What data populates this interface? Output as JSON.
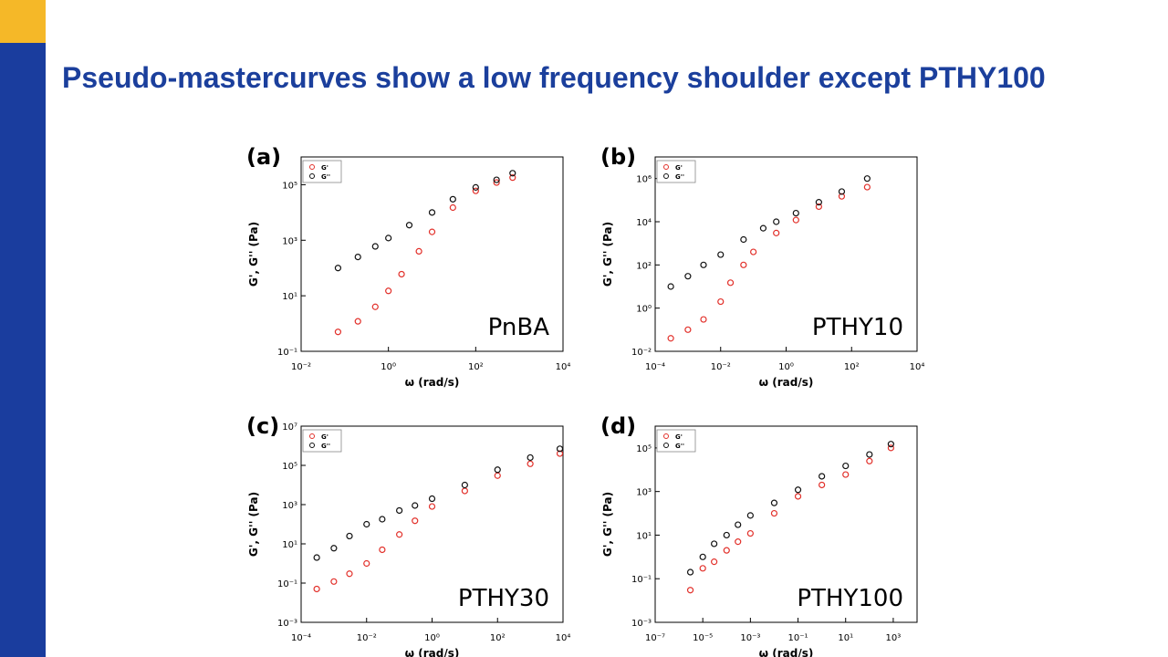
{
  "slide": {
    "title": "Pseudo-mastercurves show a low frequency shoulder except PTHY100"
  },
  "chart_data": [
    {
      "type": "scatter",
      "panel": "(a)",
      "annotation": "PnBA",
      "x_label": "ω (rad/s)",
      "y_label": "G', G'' (Pa)",
      "xscale": "log",
      "yscale": "log",
      "legend": "top-left",
      "xlim": [
        0.01,
        10000
      ],
      "ylim": [
        0.1,
        1000000
      ],
      "xticks": [
        {
          "value": 0.01,
          "label": "10⁻²"
        },
        {
          "value": 1,
          "label": "10⁰"
        },
        {
          "value": 100,
          "label": "10²"
        },
        {
          "value": 10000,
          "label": "10⁴"
        }
      ],
      "yticks": [
        {
          "value": 0.1,
          "label": "10⁻¹"
        },
        {
          "value": 10,
          "label": "10¹"
        },
        {
          "value": 1000,
          "label": "10³"
        },
        {
          "value": 100000,
          "label": "10⁵"
        }
      ],
      "series": [
        {
          "name": "G'",
          "color": "#e2302a",
          "x": [
            0.07,
            0.2,
            0.5,
            1,
            2,
            5,
            10,
            30,
            100,
            300,
            700
          ],
          "values": [
            0.5,
            1.2,
            4,
            15,
            60,
            400,
            2000,
            15000,
            60000,
            120000,
            180000
          ]
        },
        {
          "name": "G''",
          "color": "#111111",
          "x": [
            0.07,
            0.2,
            0.5,
            1,
            3,
            10,
            30,
            100,
            300,
            700
          ],
          "values": [
            100,
            250,
            600,
            1200,
            3500,
            10000,
            30000,
            80000,
            150000,
            260000
          ]
        }
      ]
    },
    {
      "type": "scatter",
      "panel": "(b)",
      "annotation": "PTHY10",
      "x_label": "ω (rad/s)",
      "y_label": "G', G'' (Pa)",
      "xscale": "log",
      "yscale": "log",
      "legend": "top-left",
      "xlim": [
        0.0001,
        10000
      ],
      "ylim": [
        0.01,
        10000000
      ],
      "xticks": [
        {
          "value": 0.0001,
          "label": "10⁻⁴"
        },
        {
          "value": 0.01,
          "label": "10⁻²"
        },
        {
          "value": 1,
          "label": "10⁰"
        },
        {
          "value": 100,
          "label": "10²"
        },
        {
          "value": 10000,
          "label": "10⁴"
        }
      ],
      "yticks": [
        {
          "value": 0.01,
          "label": "10⁻²"
        },
        {
          "value": 1,
          "label": "10⁰"
        },
        {
          "value": 100,
          "label": "10²"
        },
        {
          "value": 10000,
          "label": "10⁴"
        },
        {
          "value": 1000000,
          "label": "10⁶"
        }
      ],
      "series": [
        {
          "name": "G'",
          "color": "#e2302a",
          "x": [
            0.0003,
            0.001,
            0.003,
            0.01,
            0.02,
            0.05,
            0.1,
            0.5,
            2,
            10,
            50,
            300
          ],
          "values": [
            0.04,
            0.1,
            0.3,
            2,
            15,
            100,
            400,
            3000,
            12000,
            50000,
            150000,
            400000
          ]
        },
        {
          "name": "G''",
          "color": "#111111",
          "x": [
            0.0003,
            0.001,
            0.003,
            0.01,
            0.05,
            0.2,
            0.5,
            2,
            10,
            50,
            300
          ],
          "values": [
            10,
            30,
            100,
            300,
            1500,
            5000,
            10000,
            25000,
            80000,
            250000,
            1000000
          ]
        }
      ]
    },
    {
      "type": "scatter",
      "panel": "(c)",
      "annotation": "PTHY30",
      "x_label": "ω (rad/s)",
      "y_label": "G', G'' (Pa)",
      "xscale": "log",
      "yscale": "log",
      "legend": "top-left",
      "xlim": [
        0.0001,
        10000
      ],
      "ylim": [
        0.001,
        10000000
      ],
      "xticks": [
        {
          "value": 0.0001,
          "label": "10⁻⁴"
        },
        {
          "value": 0.01,
          "label": "10⁻²"
        },
        {
          "value": 1,
          "label": "10⁰"
        },
        {
          "value": 100,
          "label": "10²"
        },
        {
          "value": 10000,
          "label": "10⁴"
        }
      ],
      "yticks": [
        {
          "value": 0.001,
          "label": "10⁻³"
        },
        {
          "value": 0.1,
          "label": "10⁻¹"
        },
        {
          "value": 10,
          "label": "10¹"
        },
        {
          "value": 1000,
          "label": "10³"
        },
        {
          "value": 100000,
          "label": "10⁵"
        },
        {
          "value": 10000000,
          "label": "10⁷"
        }
      ],
      "series": [
        {
          "name": "G'",
          "color": "#e2302a",
          "x": [
            0.0003,
            0.001,
            0.003,
            0.01,
            0.03,
            0.1,
            0.3,
            1,
            10,
            100,
            1000,
            8000
          ],
          "values": [
            0.05,
            0.12,
            0.3,
            1,
            5,
            30,
            150,
            800,
            5000,
            30000,
            120000,
            400000
          ]
        },
        {
          "name": "G''",
          "color": "#111111",
          "x": [
            0.0003,
            0.001,
            0.003,
            0.01,
            0.03,
            0.1,
            0.3,
            1,
            10,
            100,
            1000,
            8000
          ],
          "values": [
            2,
            6,
            25,
            100,
            180,
            500,
            900,
            2000,
            10000,
            60000,
            250000,
            700000
          ]
        }
      ]
    },
    {
      "type": "scatter",
      "panel": "(d)",
      "annotation": "PTHY100",
      "x_label": "ω (rad/s)",
      "y_label": "G', G'' (Pa)",
      "xscale": "log",
      "yscale": "log",
      "legend": "top-left",
      "xlim": [
        1e-07,
        10000
      ],
      "ylim": [
        0.001,
        1000000
      ],
      "xticks": [
        {
          "value": 1e-07,
          "label": "10⁻⁷"
        },
        {
          "value": 1e-05,
          "label": "10⁻⁵"
        },
        {
          "value": 0.001,
          "label": "10⁻³"
        },
        {
          "value": 0.1,
          "label": "10⁻¹"
        },
        {
          "value": 10,
          "label": "10¹"
        },
        {
          "value": 1000,
          "label": "10³"
        }
      ],
      "yticks": [
        {
          "value": 0.001,
          "label": "10⁻³"
        },
        {
          "value": 0.1,
          "label": "10⁻¹"
        },
        {
          "value": 10,
          "label": "10¹"
        },
        {
          "value": 1000,
          "label": "10³"
        },
        {
          "value": 100000,
          "label": "10⁵"
        }
      ],
      "series": [
        {
          "name": "G'",
          "color": "#e2302a",
          "x": [
            3e-06,
            1e-05,
            3e-05,
            0.0001,
            0.0003,
            0.001,
            0.01,
            0.1,
            1,
            10,
            100,
            800
          ],
          "values": [
            0.03,
            0.3,
            0.6,
            2,
            5,
            12,
            100,
            600,
            2000,
            6000,
            25000,
            100000
          ]
        },
        {
          "name": "G''",
          "color": "#111111",
          "x": [
            3e-06,
            1e-05,
            3e-05,
            0.0001,
            0.0003,
            0.001,
            0.01,
            0.1,
            1,
            10,
            100,
            800
          ],
          "values": [
            0.2,
            1,
            4,
            10,
            30,
            80,
            300,
            1200,
            5000,
            15000,
            50000,
            150000
          ]
        }
      ]
    }
  ]
}
